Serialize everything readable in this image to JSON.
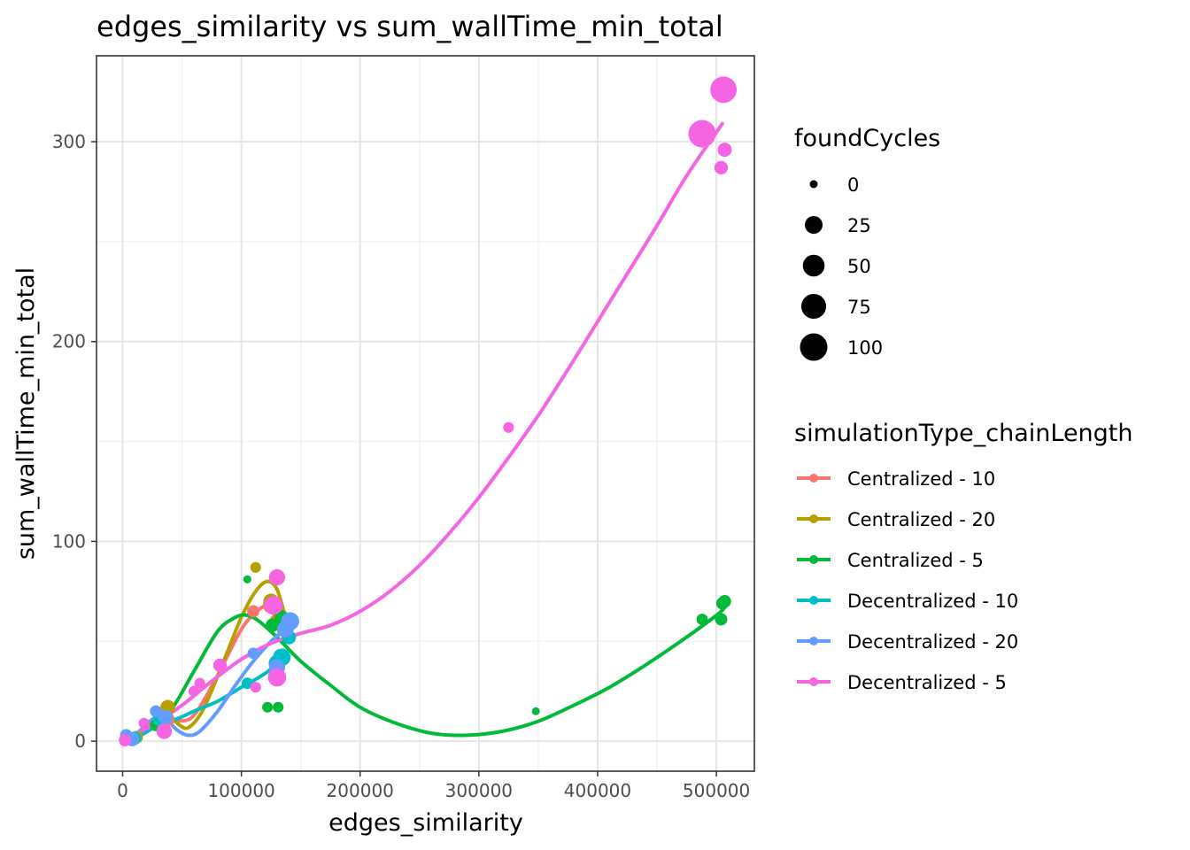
{
  "chart_data": {
    "type": "scatter",
    "title": "edges_similarity  vs  sum_wallTime_min_total",
    "xlabel": "edges_similarity",
    "ylabel": "sum_wallTime_min_total",
    "xlim": [
      -22000,
      532000
    ],
    "ylim": [
      -15,
      343
    ],
    "x_ticks": [
      0,
      100000,
      200000,
      300000,
      400000,
      500000
    ],
    "x_tick_labels": [
      "0",
      "100000",
      "200000",
      "300000",
      "400000",
      "500000"
    ],
    "y_ticks": [
      0,
      100,
      200,
      300
    ],
    "y_tick_labels": [
      "0",
      "100",
      "200",
      "300"
    ],
    "grid": true,
    "theme": "bw",
    "size_legend": {
      "title": "foundCycles",
      "entries": [
        {
          "label": "0",
          "value": 0
        },
        {
          "label": "25",
          "value": 25
        },
        {
          "label": "50",
          "value": 50
        },
        {
          "label": "75",
          "value": 75
        },
        {
          "label": "100",
          "value": 100
        }
      ]
    },
    "color_legend": {
      "title": "simulationType_chainLength",
      "placement": "right"
    },
    "series": [
      {
        "name": "Centralized - 10",
        "color": "#F8766D",
        "points": [
          {
            "x": 2000,
            "y": 0.5,
            "size": 0
          },
          {
            "x": 9000,
            "y": 1.5,
            "size": 3
          },
          {
            "x": 30000,
            "y": 9,
            "size": 6
          },
          {
            "x": 38000,
            "y": 11,
            "size": 8
          },
          {
            "x": 110000,
            "y": 65,
            "size": 5
          },
          {
            "x": 125000,
            "y": 68,
            "size": 18
          },
          {
            "x": 130000,
            "y": 60,
            "size": 12
          }
        ],
        "smooth": [
          {
            "x": 0,
            "y": 0
          },
          {
            "x": 15000,
            "y": 3
          },
          {
            "x": 30000,
            "y": 9
          },
          {
            "x": 45000,
            "y": 10
          },
          {
            "x": 60000,
            "y": 13
          },
          {
            "x": 80000,
            "y": 33
          },
          {
            "x": 100000,
            "y": 56
          },
          {
            "x": 115000,
            "y": 66
          },
          {
            "x": 125000,
            "y": 68
          },
          {
            "x": 135000,
            "y": 62
          }
        ]
      },
      {
        "name": "Centralized - 20",
        "color": "#B79F00",
        "points": [
          {
            "x": 3000,
            "y": 0.5,
            "size": 0
          },
          {
            "x": 12000,
            "y": 2,
            "size": 5
          },
          {
            "x": 32000,
            "y": 12,
            "size": 15
          },
          {
            "x": 38000,
            "y": 17,
            "size": 12
          },
          {
            "x": 112000,
            "y": 87,
            "size": 2
          },
          {
            "x": 125000,
            "y": 70,
            "size": 15
          },
          {
            "x": 132000,
            "y": 62,
            "size": 10
          }
        ],
        "smooth": [
          {
            "x": 0,
            "y": 0
          },
          {
            "x": 12000,
            "y": 4
          },
          {
            "x": 25000,
            "y": 10
          },
          {
            "x": 38000,
            "y": 13
          },
          {
            "x": 48000,
            "y": 8
          },
          {
            "x": 56000,
            "y": 7
          },
          {
            "x": 68000,
            "y": 16
          },
          {
            "x": 85000,
            "y": 40
          },
          {
            "x": 100000,
            "y": 62
          },
          {
            "x": 112000,
            "y": 75
          },
          {
            "x": 122000,
            "y": 80
          },
          {
            "x": 130000,
            "y": 76
          },
          {
            "x": 137000,
            "y": 62
          }
        ]
      },
      {
        "name": "Centralized - 5",
        "color": "#00BA38",
        "points": [
          {
            "x": 2000,
            "y": 0.5,
            "size": 0
          },
          {
            "x": 28000,
            "y": 8,
            "size": 4
          },
          {
            "x": 105000,
            "y": 81,
            "size": 0
          },
          {
            "x": 122000,
            "y": 17,
            "size": 2
          },
          {
            "x": 131000,
            "y": 17,
            "size": 2
          },
          {
            "x": 126000,
            "y": 58,
            "size": 8
          },
          {
            "x": 134000,
            "y": 62,
            "size": 10
          },
          {
            "x": 348000,
            "y": 15,
            "size": 0
          },
          {
            "x": 488000,
            "y": 61,
            "size": 3
          },
          {
            "x": 504000,
            "y": 61,
            "size": 5
          },
          {
            "x": 505000,
            "y": 69,
            "size": 5
          },
          {
            "x": 507000,
            "y": 70,
            "size": 6
          }
        ],
        "smooth": [
          {
            "x": 0,
            "y": 0
          },
          {
            "x": 20000,
            "y": 5
          },
          {
            "x": 40000,
            "y": 15
          },
          {
            "x": 60000,
            "y": 35
          },
          {
            "x": 80000,
            "y": 55
          },
          {
            "x": 95000,
            "y": 62
          },
          {
            "x": 105000,
            "y": 63
          },
          {
            "x": 115000,
            "y": 60
          },
          {
            "x": 130000,
            "y": 52
          },
          {
            "x": 150000,
            "y": 40
          },
          {
            "x": 175000,
            "y": 28
          },
          {
            "x": 200000,
            "y": 17
          },
          {
            "x": 230000,
            "y": 9
          },
          {
            "x": 260000,
            "y": 4
          },
          {
            "x": 290000,
            "y": 3
          },
          {
            "x": 320000,
            "y": 5
          },
          {
            "x": 350000,
            "y": 10
          },
          {
            "x": 380000,
            "y": 18
          },
          {
            "x": 410000,
            "y": 27
          },
          {
            "x": 440000,
            "y": 38
          },
          {
            "x": 470000,
            "y": 50
          },
          {
            "x": 500000,
            "y": 63
          },
          {
            "x": 507000,
            "y": 67
          }
        ]
      },
      {
        "name": "Decentralized - 10",
        "color": "#00BFC4",
        "points": [
          {
            "x": 4000,
            "y": 1,
            "size": 2
          },
          {
            "x": 10000,
            "y": 1.5,
            "size": 8
          },
          {
            "x": 32000,
            "y": 11,
            "size": 14
          },
          {
            "x": 105000,
            "y": 29,
            "size": 3
          },
          {
            "x": 130000,
            "y": 39,
            "size": 20
          },
          {
            "x": 134000,
            "y": 42,
            "size": 25
          },
          {
            "x": 140000,
            "y": 52,
            "size": 10
          }
        ],
        "smooth": [
          {
            "x": 0,
            "y": 0
          },
          {
            "x": 15000,
            "y": 3
          },
          {
            "x": 30000,
            "y": 8
          },
          {
            "x": 45000,
            "y": 11
          },
          {
            "x": 60000,
            "y": 15
          },
          {
            "x": 80000,
            "y": 20
          },
          {
            "x": 100000,
            "y": 27
          },
          {
            "x": 115000,
            "y": 32
          },
          {
            "x": 125000,
            "y": 36
          },
          {
            "x": 133000,
            "y": 40
          }
        ]
      },
      {
        "name": "Decentralized - 20",
        "color": "#619CFF",
        "points": [
          {
            "x": 3000,
            "y": 3,
            "size": 5
          },
          {
            "x": 8000,
            "y": 1,
            "size": 10
          },
          {
            "x": 28000,
            "y": 15,
            "size": 4
          },
          {
            "x": 36000,
            "y": 12,
            "size": 12
          },
          {
            "x": 110000,
            "y": 44,
            "size": 3
          },
          {
            "x": 130000,
            "y": 37,
            "size": 18
          },
          {
            "x": 137000,
            "y": 56,
            "size": 20
          },
          {
            "x": 141000,
            "y": 60,
            "size": 28
          }
        ],
        "smooth": [
          {
            "x": 0,
            "y": 0
          },
          {
            "x": 12000,
            "y": 4
          },
          {
            "x": 25000,
            "y": 11
          },
          {
            "x": 35000,
            "y": 12
          },
          {
            "x": 45000,
            "y": 6
          },
          {
            "x": 55000,
            "y": 3
          },
          {
            "x": 65000,
            "y": 5
          },
          {
            "x": 80000,
            "y": 15
          },
          {
            "x": 95000,
            "y": 28
          },
          {
            "x": 110000,
            "y": 40
          },
          {
            "x": 125000,
            "y": 50
          },
          {
            "x": 135000,
            "y": 55
          },
          {
            "x": 141000,
            "y": 58
          }
        ]
      },
      {
        "name": "Decentralized - 5",
        "color": "#F564E3",
        "points": [
          {
            "x": 2000,
            "y": 0.5,
            "size": 5
          },
          {
            "x": 18000,
            "y": 9,
            "size": 2
          },
          {
            "x": 35000,
            "y": 5,
            "size": 15
          },
          {
            "x": 60000,
            "y": 25,
            "size": 2
          },
          {
            "x": 65000,
            "y": 29,
            "size": 2
          },
          {
            "x": 82000,
            "y": 38,
            "size": 8
          },
          {
            "x": 112000,
            "y": 27,
            "size": 2
          },
          {
            "x": 127000,
            "y": 68,
            "size": 30
          },
          {
            "x": 130000,
            "y": 82,
            "size": 18
          },
          {
            "x": 130000,
            "y": 32,
            "size": 28
          },
          {
            "x": 325000,
            "y": 157,
            "size": 2
          },
          {
            "x": 488000,
            "y": 304,
            "size": 100
          },
          {
            "x": 504000,
            "y": 287,
            "size": 8
          },
          {
            "x": 506000,
            "y": 326,
            "size": 90
          },
          {
            "x": 507000,
            "y": 296,
            "size": 10
          }
        ],
        "smooth": [
          {
            "x": 0,
            "y": 0
          },
          {
            "x": 25000,
            "y": 8
          },
          {
            "x": 50000,
            "y": 18
          },
          {
            "x": 75000,
            "y": 30
          },
          {
            "x": 100000,
            "y": 41
          },
          {
            "x": 125000,
            "y": 49
          },
          {
            "x": 150000,
            "y": 54
          },
          {
            "x": 175000,
            "y": 58
          },
          {
            "x": 200000,
            "y": 65
          },
          {
            "x": 225000,
            "y": 75
          },
          {
            "x": 250000,
            "y": 88
          },
          {
            "x": 275000,
            "y": 104
          },
          {
            "x": 300000,
            "y": 122
          },
          {
            "x": 325000,
            "y": 142
          },
          {
            "x": 350000,
            "y": 163
          },
          {
            "x": 375000,
            "y": 186
          },
          {
            "x": 400000,
            "y": 210
          },
          {
            "x": 425000,
            "y": 234
          },
          {
            "x": 450000,
            "y": 258
          },
          {
            "x": 475000,
            "y": 283
          },
          {
            "x": 505000,
            "y": 309
          }
        ]
      }
    ]
  }
}
